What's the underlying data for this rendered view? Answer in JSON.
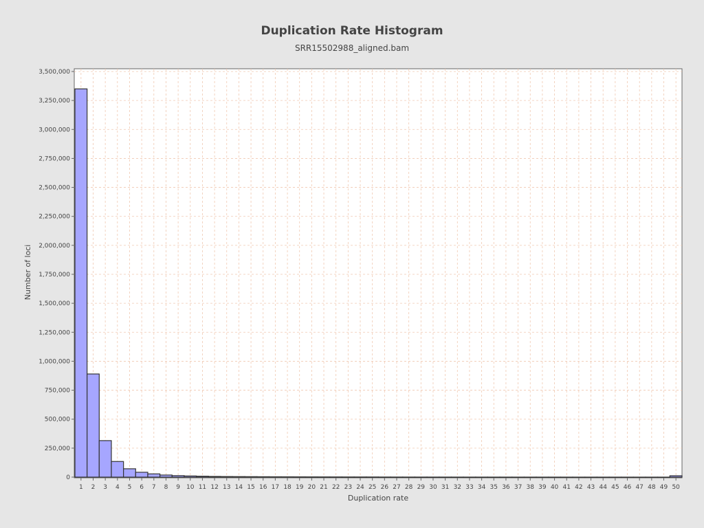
{
  "chart_data": {
    "type": "bar",
    "title": "Duplication Rate Histogram",
    "subtitle": "SRR15502988_aligned.bam",
    "xlabel": "Duplication rate",
    "ylabel": "Number of loci",
    "ylim": [
      0,
      3500000
    ],
    "yticks": [
      "0",
      "250,000",
      "500,000",
      "750,000",
      "1,000,000",
      "1,250,000",
      "1,500,000",
      "1,750,000",
      "2,000,000",
      "2,250,000",
      "2,500,000",
      "2,750,000",
      "3,000,000",
      "3,250,000",
      "3,500,000"
    ],
    "categories": [
      "1",
      "2",
      "3",
      "4",
      "5",
      "6",
      "7",
      "8",
      "9",
      "10",
      "11",
      "12",
      "13",
      "14",
      "15",
      "16",
      "17",
      "18",
      "19",
      "20",
      "21",
      "22",
      "23",
      "24",
      "25",
      "26",
      "27",
      "28",
      "29",
      "30",
      "31",
      "32",
      "33",
      "34",
      "35",
      "36",
      "37",
      "38",
      "39",
      "40",
      "41",
      "42",
      "43",
      "44",
      "45",
      "46",
      "47",
      "48",
      "49",
      "50"
    ],
    "values": [
      3350000,
      890000,
      315000,
      135000,
      72000,
      42000,
      28000,
      18000,
      13000,
      10000,
      8000,
      6000,
      5000,
      4500,
      4000,
      3500,
      3000,
      2800,
      2500,
      2200,
      2000,
      1800,
      1600,
      1500,
      1400,
      1000,
      900,
      800,
      700,
      650,
      600,
      550,
      500,
      450,
      400,
      380,
      350,
      330,
      300,
      280,
      260,
      240,
      220,
      200,
      190,
      180,
      170,
      160,
      150,
      12000
    ],
    "grid": true,
    "legend": "none",
    "colors": {
      "page_background": "#e6e6e6",
      "plot_background": "#ffffff",
      "bar_fill": "#a6a6ff",
      "bar_stroke": "#333333",
      "grid_color": "#f0c8b0",
      "text_color": "#444444"
    }
  }
}
